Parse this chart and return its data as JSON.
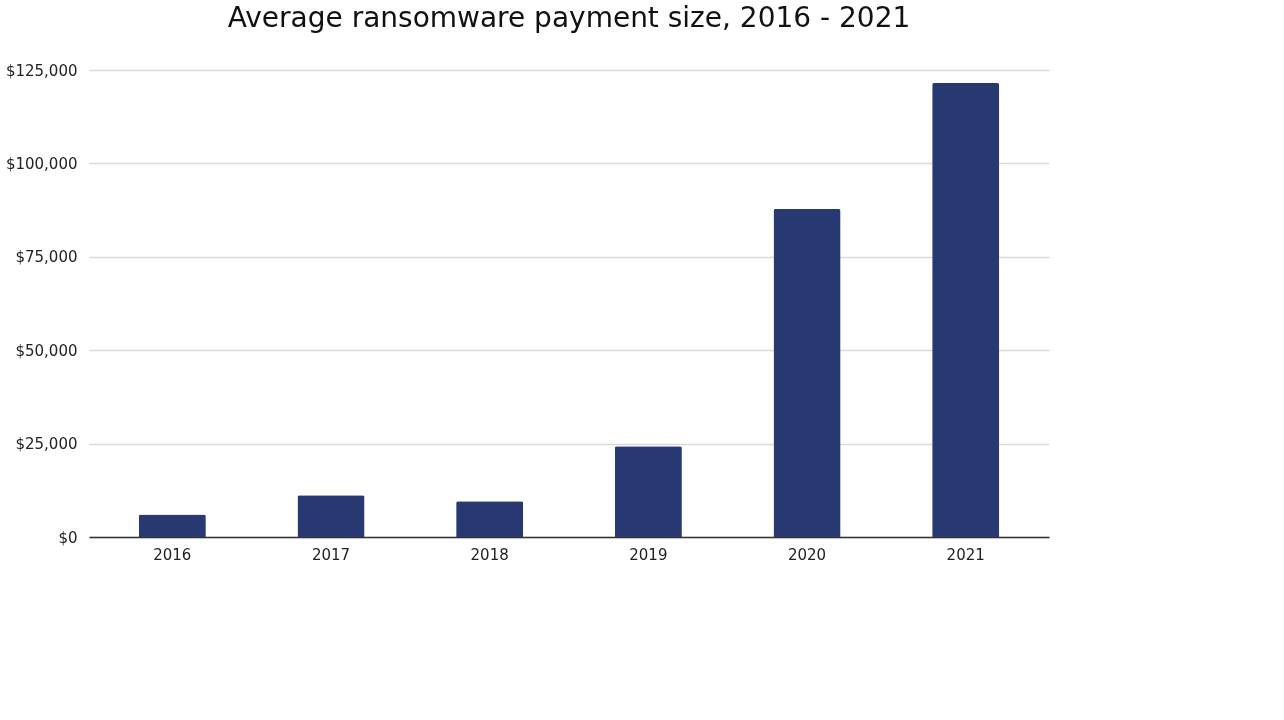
{
  "chart_data": {
    "type": "bar",
    "title": "Average ransomware payment size, 2016 - 2021",
    "categories": [
      "2016",
      "2017",
      "2018",
      "2019",
      "2020",
      "2021"
    ],
    "values": [
      6000,
      11200,
      9600,
      24300,
      87800,
      121500
    ],
    "color": "#283870",
    "ylim": [
      0,
      125000
    ],
    "yticks": [
      {
        "value": 0,
        "label": "$0"
      },
      {
        "value": 25000,
        "label": "$25,000"
      },
      {
        "value": 50000,
        "label": "$50,000"
      },
      {
        "value": 75000,
        "label": "$75,000"
      },
      {
        "value": 100000,
        "label": "$100,000"
      },
      {
        "value": 125000,
        "label": "$125,000"
      }
    ],
    "grid": "y"
  }
}
